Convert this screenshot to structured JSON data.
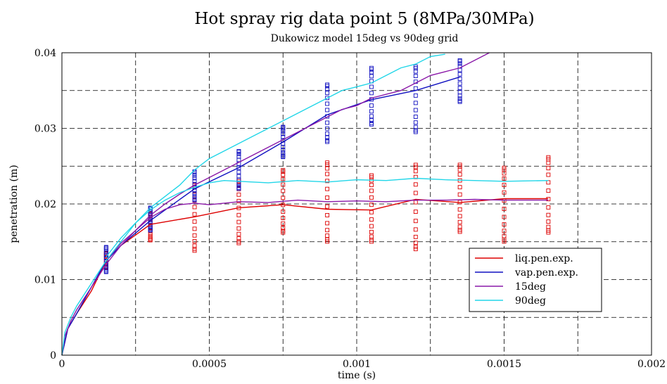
{
  "chart_data": {
    "type": "line",
    "title": "Hot spray rig data point 5 (8MPa/30MPa)",
    "subtitle": "Dukowicz model 15deg vs 90deg grid",
    "xlabel": "time (s)",
    "ylabel": "penetration (m)",
    "xlim": [
      0,
      0.002
    ],
    "ylim": [
      0,
      0.04
    ],
    "grid": true,
    "legend_position": "bottom-right",
    "x_ticks": [
      "0",
      "0.0005",
      "0.001",
      "0.0015",
      "0.002"
    ],
    "y_ticks": [
      "0",
      "0.01",
      "0.02",
      "0.03",
      "0.04"
    ],
    "x_tick_values": [
      0,
      0.0005,
      0.001,
      0.0015,
      0.002
    ],
    "y_tick_values": [
      0,
      0.01,
      0.02,
      0.03,
      0.04
    ],
    "x_grid": [
      0.00025,
      0.0005,
      0.00075,
      0.001,
      0.00125,
      0.0015,
      0.00175
    ],
    "y_grid": [
      0.005,
      0.01,
      0.015,
      0.02,
      0.025,
      0.03,
      0.035
    ],
    "series": [
      {
        "name": "liq.pen.exp.",
        "color": "#dd0000",
        "x": [
          0,
          2e-05,
          5e-05,
          0.0001,
          0.00015,
          0.0002,
          0.0003,
          0.00045,
          0.0006,
          0.00075,
          0.0009,
          0.00105,
          0.0012,
          0.00135,
          0.0015,
          0.00165
        ],
        "y": [
          0,
          0.0035,
          0.0055,
          0.0085,
          0.0125,
          0.0145,
          0.0173,
          0.0183,
          0.0195,
          0.0199,
          0.0193,
          0.0192,
          0.0206,
          0.0202,
          0.0207,
          0.0207
        ]
      },
      {
        "name": "vap.pen.exp.",
        "color": "#1010c0",
        "x": [
          0,
          2e-05,
          5e-05,
          0.0001,
          0.00015,
          0.0002,
          0.0003,
          0.00045,
          0.0006,
          0.00075,
          0.0009,
          0.00105,
          0.0012,
          0.00135
        ],
        "y": [
          0,
          0.0035,
          0.0055,
          0.009,
          0.0125,
          0.0145,
          0.0178,
          0.022,
          0.0248,
          0.0282,
          0.0318,
          0.0338,
          0.035,
          0.0368
        ]
      },
      {
        "name": "15deg",
        "color": "#8a18a8",
        "x": [
          0,
          1e-05,
          3e-05,
          5e-05,
          0.0001,
          0.00015,
          0.0002,
          0.00025,
          0.0003,
          0.00035,
          0.0004,
          0.00045,
          0.0005,
          0.00055,
          0.0006,
          0.00065,
          0.0007,
          0.00075,
          0.0008,
          0.00085,
          0.0009,
          0.00095,
          0.001,
          0.00105,
          0.0011,
          0.00115,
          0.0012,
          0.00125,
          0.0013,
          0.00135,
          0.0014,
          0.00145
        ],
        "y": [
          0,
          0.0025,
          0.0045,
          0.006,
          0.009,
          0.012,
          0.0145,
          0.0165,
          0.0185,
          0.02,
          0.0213,
          0.0225,
          0.0235,
          0.0245,
          0.0255,
          0.0265,
          0.0275,
          0.0285,
          0.0295,
          0.0305,
          0.0315,
          0.0325,
          0.033,
          0.034,
          0.0345,
          0.035,
          0.036,
          0.037,
          0.0375,
          0.038,
          0.039,
          0.04
        ]
      },
      {
        "name": "15deg",
        "color": "#8a18a8",
        "x": [
          0.00015,
          0.0002,
          0.00025,
          0.0003,
          0.00035,
          0.0004,
          0.00045,
          0.0005,
          0.0006,
          0.0007,
          0.0008,
          0.0009,
          0.001,
          0.0011,
          0.0012,
          0.0013,
          0.0014,
          0.0015,
          0.00165
        ],
        "y": [
          0.0125,
          0.0148,
          0.0165,
          0.0182,
          0.0193,
          0.0199,
          0.0201,
          0.0199,
          0.0203,
          0.0202,
          0.0205,
          0.0203,
          0.0204,
          0.0203,
          0.0205,
          0.0205,
          0.0206,
          0.0205,
          0.0205
        ]
      },
      {
        "name": "90deg",
        "color": "#22d6e8",
        "x": [
          0,
          1e-05,
          3e-05,
          5e-05,
          0.0001,
          0.00015,
          0.0002,
          0.00025,
          0.0003,
          0.00035,
          0.0004,
          0.00045,
          0.0005,
          0.00055,
          0.0006,
          0.00065,
          0.0007,
          0.00075,
          0.0008,
          0.00085,
          0.0009,
          0.00095,
          0.001,
          0.00105,
          0.0011,
          0.00115,
          0.0012,
          0.00125,
          0.0013
        ],
        "y": [
          0,
          0.003,
          0.005,
          0.0065,
          0.0095,
          0.0125,
          0.015,
          0.0175,
          0.0195,
          0.021,
          0.0225,
          0.0245,
          0.026,
          0.027,
          0.028,
          0.029,
          0.03,
          0.031,
          0.032,
          0.033,
          0.034,
          0.035,
          0.0355,
          0.036,
          0.037,
          0.038,
          0.0385,
          0.0395,
          0.0398
        ]
      },
      {
        "name": "90deg",
        "color": "#22d6e8",
        "x": [
          0.00015,
          0.0002,
          0.00025,
          0.0003,
          0.00035,
          0.0004,
          0.00045,
          0.0005,
          0.00055,
          0.0006,
          0.0007,
          0.0008,
          0.0009,
          0.001,
          0.0011,
          0.0012,
          0.0013,
          0.0014,
          0.0015,
          0.00165
        ],
        "y": [
          0.013,
          0.0155,
          0.0175,
          0.0192,
          0.0205,
          0.0215,
          0.0222,
          0.0228,
          0.0231,
          0.023,
          0.0228,
          0.0231,
          0.0229,
          0.0232,
          0.0231,
          0.0234,
          0.0232,
          0.0231,
          0.023,
          0.0231
        ]
      }
    ],
    "scatter": [
      {
        "name": "liq.pen.exp.",
        "color": "#dd0000",
        "x": [
          0.00015,
          0.0003,
          0.00045,
          0.0006,
          0.00075,
          0.0009,
          0.00105,
          0.0012,
          0.00135,
          0.0015,
          0.00165
        ],
        "y_min": [
          0.0115,
          0.0152,
          0.0138,
          0.0148,
          0.0162,
          0.015,
          0.015,
          0.014,
          0.0163,
          0.015,
          0.0162
        ],
        "y_max": [
          0.0135,
          0.0188,
          0.0225,
          0.0232,
          0.0245,
          0.0255,
          0.0238,
          0.0252,
          0.0252,
          0.0248,
          0.0262
        ]
      },
      {
        "name": "vap.pen.exp.",
        "color": "#1010c0",
        "x": [
          0.00015,
          0.0003,
          0.00045,
          0.0006,
          0.00075,
          0.0009,
          0.00105,
          0.0012,
          0.00135
        ],
        "y_min": [
          0.011,
          0.0165,
          0.0205,
          0.022,
          0.0262,
          0.0282,
          0.0305,
          0.0295,
          0.0335
        ],
        "y_max": [
          0.0143,
          0.0195,
          0.0243,
          0.027,
          0.0302,
          0.0358,
          0.038,
          0.0382,
          0.039
        ]
      }
    ],
    "legend": [
      {
        "label": "liq.pen.exp.",
        "color": "#dd0000"
      },
      {
        "label": "vap.pen.exp.",
        "color": "#1010c0"
      },
      {
        "label": "15deg",
        "color": "#8a18a8"
      },
      {
        "label": "90deg",
        "color": "#22d6e8"
      }
    ]
  }
}
